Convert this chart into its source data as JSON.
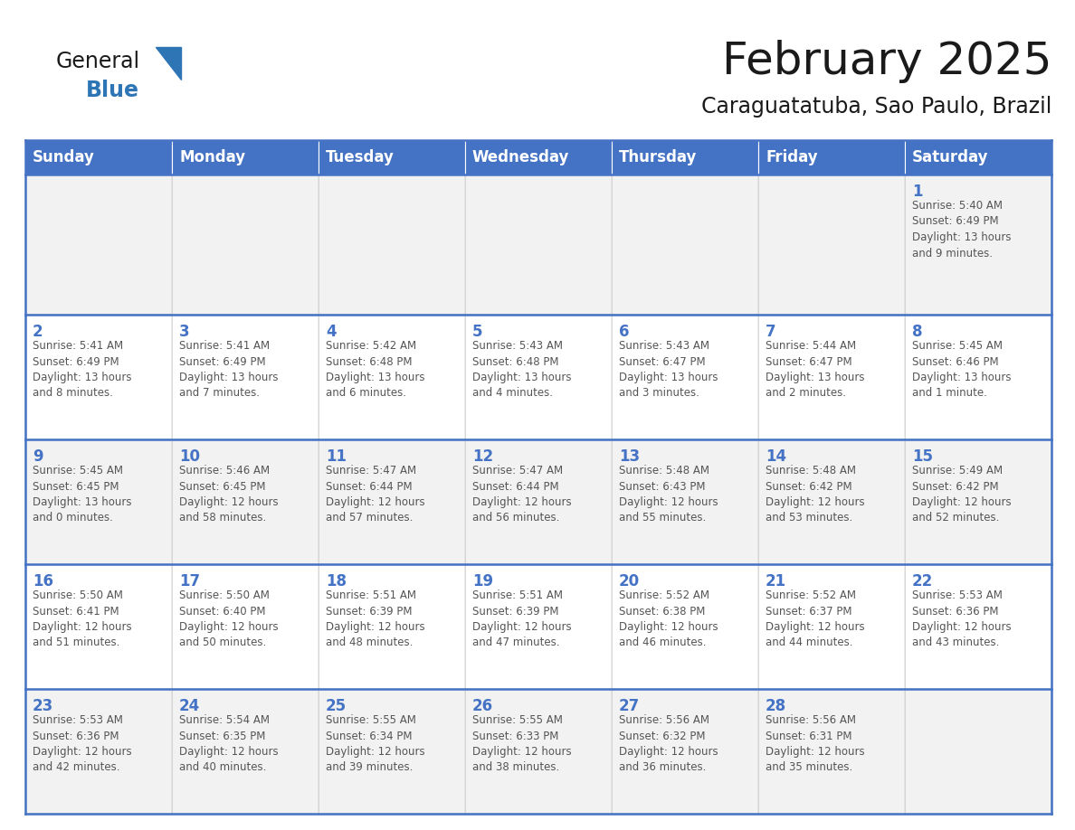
{
  "title": "February 2025",
  "subtitle": "Caraguatatuba, Sao Paulo, Brazil",
  "days_of_week": [
    "Sunday",
    "Monday",
    "Tuesday",
    "Wednesday",
    "Thursday",
    "Friday",
    "Saturday"
  ],
  "header_bg": "#4472C4",
  "header_text_color": "#FFFFFF",
  "cell_bg_white": "#FFFFFF",
  "cell_bg_light": "#F2F2F2",
  "grid_line_color": "#4472C4",
  "day_num_color": "#4472C4",
  "text_color": "#555555",
  "title_color": "#1a1a1a",
  "logo_general_color": "#1a1a1a",
  "logo_blue_color": "#2E75B6",
  "weeks": [
    [
      {
        "day": null,
        "info": null
      },
      {
        "day": null,
        "info": null
      },
      {
        "day": null,
        "info": null
      },
      {
        "day": null,
        "info": null
      },
      {
        "day": null,
        "info": null
      },
      {
        "day": null,
        "info": null
      },
      {
        "day": 1,
        "info": "Sunrise: 5:40 AM\nSunset: 6:49 PM\nDaylight: 13 hours\nand 9 minutes."
      }
    ],
    [
      {
        "day": 2,
        "info": "Sunrise: 5:41 AM\nSunset: 6:49 PM\nDaylight: 13 hours\nand 8 minutes."
      },
      {
        "day": 3,
        "info": "Sunrise: 5:41 AM\nSunset: 6:49 PM\nDaylight: 13 hours\nand 7 minutes."
      },
      {
        "day": 4,
        "info": "Sunrise: 5:42 AM\nSunset: 6:48 PM\nDaylight: 13 hours\nand 6 minutes."
      },
      {
        "day": 5,
        "info": "Sunrise: 5:43 AM\nSunset: 6:48 PM\nDaylight: 13 hours\nand 4 minutes."
      },
      {
        "day": 6,
        "info": "Sunrise: 5:43 AM\nSunset: 6:47 PM\nDaylight: 13 hours\nand 3 minutes."
      },
      {
        "day": 7,
        "info": "Sunrise: 5:44 AM\nSunset: 6:47 PM\nDaylight: 13 hours\nand 2 minutes."
      },
      {
        "day": 8,
        "info": "Sunrise: 5:45 AM\nSunset: 6:46 PM\nDaylight: 13 hours\nand 1 minute."
      }
    ],
    [
      {
        "day": 9,
        "info": "Sunrise: 5:45 AM\nSunset: 6:45 PM\nDaylight: 13 hours\nand 0 minutes."
      },
      {
        "day": 10,
        "info": "Sunrise: 5:46 AM\nSunset: 6:45 PM\nDaylight: 12 hours\nand 58 minutes."
      },
      {
        "day": 11,
        "info": "Sunrise: 5:47 AM\nSunset: 6:44 PM\nDaylight: 12 hours\nand 57 minutes."
      },
      {
        "day": 12,
        "info": "Sunrise: 5:47 AM\nSunset: 6:44 PM\nDaylight: 12 hours\nand 56 minutes."
      },
      {
        "day": 13,
        "info": "Sunrise: 5:48 AM\nSunset: 6:43 PM\nDaylight: 12 hours\nand 55 minutes."
      },
      {
        "day": 14,
        "info": "Sunrise: 5:48 AM\nSunset: 6:42 PM\nDaylight: 12 hours\nand 53 minutes."
      },
      {
        "day": 15,
        "info": "Sunrise: 5:49 AM\nSunset: 6:42 PM\nDaylight: 12 hours\nand 52 minutes."
      }
    ],
    [
      {
        "day": 16,
        "info": "Sunrise: 5:50 AM\nSunset: 6:41 PM\nDaylight: 12 hours\nand 51 minutes."
      },
      {
        "day": 17,
        "info": "Sunrise: 5:50 AM\nSunset: 6:40 PM\nDaylight: 12 hours\nand 50 minutes."
      },
      {
        "day": 18,
        "info": "Sunrise: 5:51 AM\nSunset: 6:39 PM\nDaylight: 12 hours\nand 48 minutes."
      },
      {
        "day": 19,
        "info": "Sunrise: 5:51 AM\nSunset: 6:39 PM\nDaylight: 12 hours\nand 47 minutes."
      },
      {
        "day": 20,
        "info": "Sunrise: 5:52 AM\nSunset: 6:38 PM\nDaylight: 12 hours\nand 46 minutes."
      },
      {
        "day": 21,
        "info": "Sunrise: 5:52 AM\nSunset: 6:37 PM\nDaylight: 12 hours\nand 44 minutes."
      },
      {
        "day": 22,
        "info": "Sunrise: 5:53 AM\nSunset: 6:36 PM\nDaylight: 12 hours\nand 43 minutes."
      }
    ],
    [
      {
        "day": 23,
        "info": "Sunrise: 5:53 AM\nSunset: 6:36 PM\nDaylight: 12 hours\nand 42 minutes."
      },
      {
        "day": 24,
        "info": "Sunrise: 5:54 AM\nSunset: 6:35 PM\nDaylight: 12 hours\nand 40 minutes."
      },
      {
        "day": 25,
        "info": "Sunrise: 5:55 AM\nSunset: 6:34 PM\nDaylight: 12 hours\nand 39 minutes."
      },
      {
        "day": 26,
        "info": "Sunrise: 5:55 AM\nSunset: 6:33 PM\nDaylight: 12 hours\nand 38 minutes."
      },
      {
        "day": 27,
        "info": "Sunrise: 5:56 AM\nSunset: 6:32 PM\nDaylight: 12 hours\nand 36 minutes."
      },
      {
        "day": 28,
        "info": "Sunrise: 5:56 AM\nSunset: 6:31 PM\nDaylight: 12 hours\nand 35 minutes."
      },
      {
        "day": null,
        "info": null
      }
    ]
  ]
}
